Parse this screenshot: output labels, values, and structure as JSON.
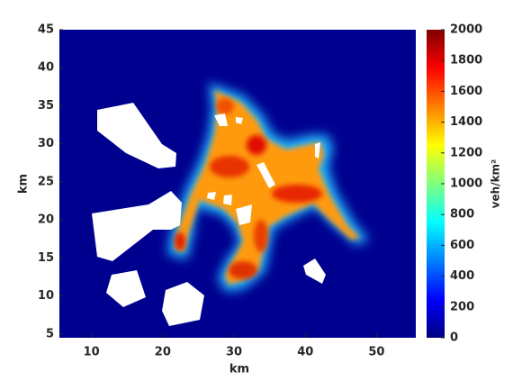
{
  "chart_data": {
    "type": "heatmap",
    "colormap": "jet",
    "xlabel": "km",
    "ylabel": "km",
    "xlim": [
      5.5,
      55.5
    ],
    "xticks": [
      10,
      20,
      30,
      40,
      50
    ],
    "ylim": [
      4.5,
      45
    ],
    "yticks": [
      5,
      10,
      15,
      20,
      25,
      30,
      35,
      40,
      45
    ],
    "colorbar": {
      "label": "veh/km²",
      "lim": [
        0,
        2000
      ],
      "ticks": [
        0,
        200,
        400,
        600,
        800,
        1000,
        1200,
        1400,
        1600,
        1800,
        2000
      ]
    }
  }
}
